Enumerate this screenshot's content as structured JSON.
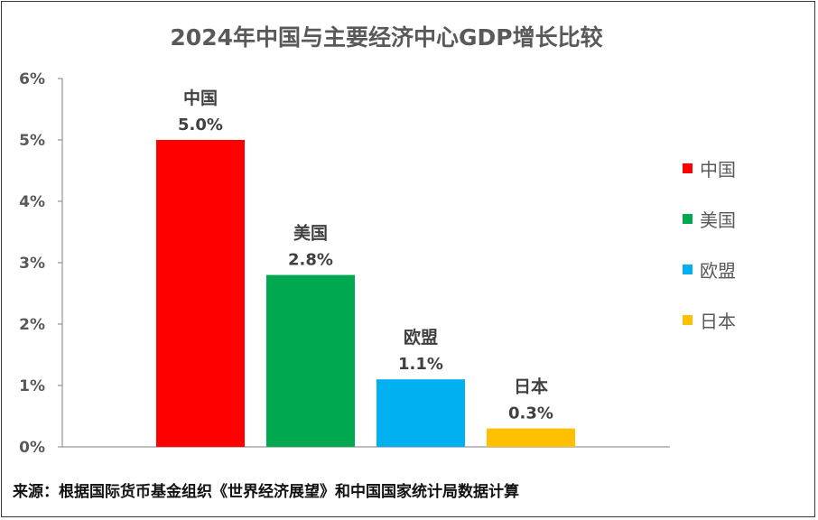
{
  "chart_data": {
    "type": "bar",
    "title": "2024年中国与主要经济中心GDP增长比较",
    "categories": [
      "中国",
      "美国",
      "欧盟",
      "日本"
    ],
    "values": [
      5.0,
      2.8,
      1.1,
      0.3
    ],
    "value_labels": [
      "5.0%",
      "2.8%",
      "1.1%",
      "0.3%"
    ],
    "colors": [
      "#ff0000",
      "#00a84f",
      "#00b0f0",
      "#ffc000"
    ],
    "yticks": [
      "0%",
      "1%",
      "2%",
      "3%",
      "4%",
      "5%",
      "6%"
    ],
    "ylim": [
      0,
      6
    ],
    "xlabel": "",
    "ylabel": "",
    "legend_position": "right",
    "grid": false
  },
  "legend": [
    {
      "label": "中国",
      "color": "#ff0000"
    },
    {
      "label": "美国",
      "color": "#00a84f"
    },
    {
      "label": "欧盟",
      "color": "#00b0f0"
    },
    {
      "label": "日本",
      "color": "#ffc000"
    }
  ],
  "source": "来源：根据国际货币基金组织《世界经济展望》和中国国家统计局数据计算"
}
